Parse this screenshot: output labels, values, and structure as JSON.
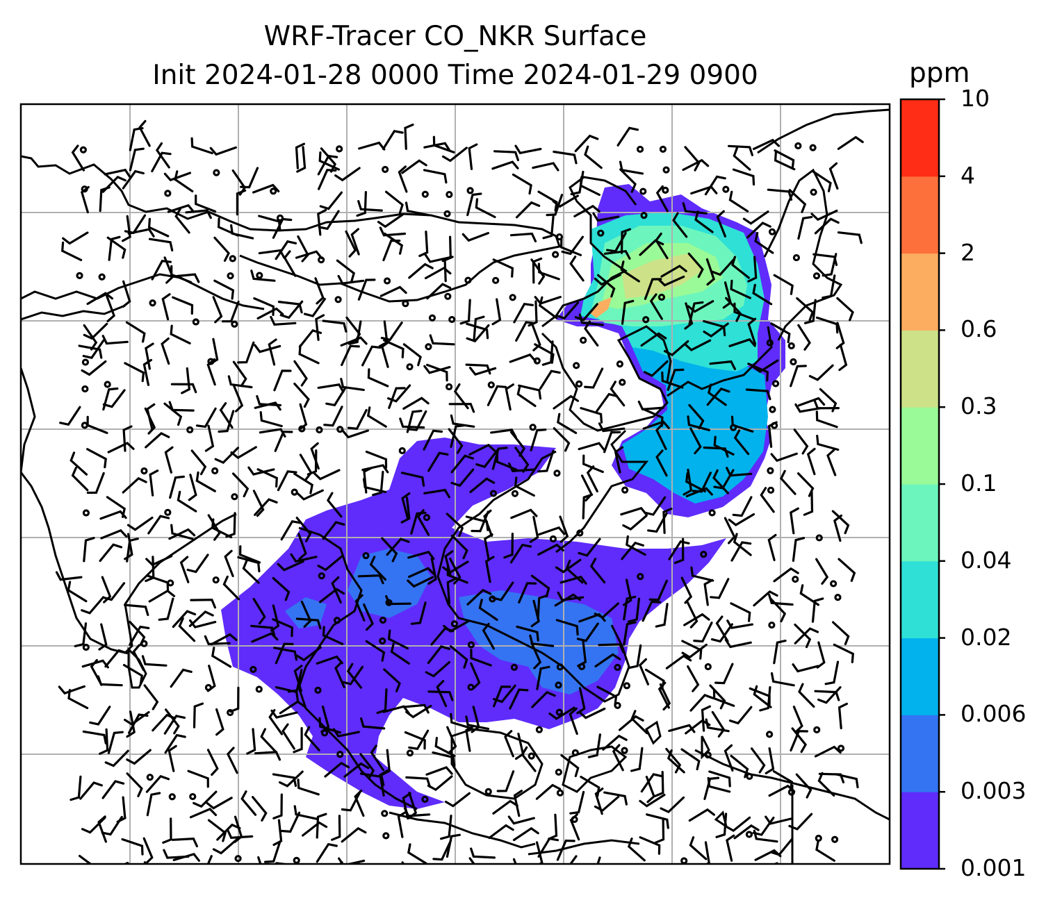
{
  "title": {
    "line1": "WRF-Tracer CO_NKR Surface",
    "line2": "Init 2024-01-28 0000 Time 2024-01-29 0900"
  },
  "colorbar": {
    "unit": "ppm",
    "ticks": [
      "0.001",
      "0.003",
      "0.006",
      "0.02",
      "0.04",
      "0.1",
      "0.3",
      "0.6",
      "2",
      "4",
      "10"
    ],
    "colors": [
      "#5f2cfb",
      "#3474f2",
      "#02b2ec",
      "#2ee0d6",
      "#6cf6bd",
      "#9afa97",
      "#cde288",
      "#fdad60",
      "#fe703b",
      "#ff2c16"
    ]
  },
  "map": {
    "features": [
      "coastlines",
      "country-borders",
      "gridlines",
      "wind-barbs",
      "co-tracer-fill"
    ],
    "colors": {
      "coast": "#000000",
      "grid": "#b0b0b0"
    }
  }
}
